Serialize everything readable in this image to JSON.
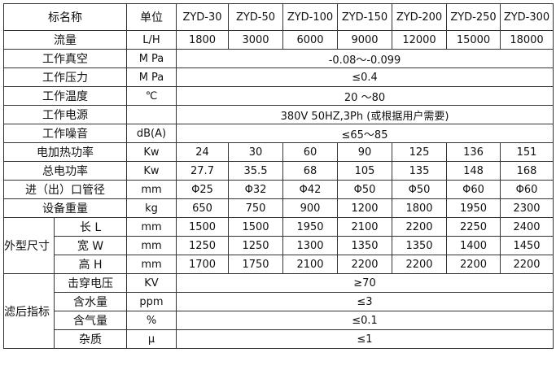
{
  "header": {
    "name": "标名称",
    "unit": "单位",
    "models": [
      "ZYD-30",
      "ZYD-50",
      "ZYD-100",
      "ZYD-150",
      "ZYD-200",
      "ZYD-250",
      "ZYD-300"
    ]
  },
  "rows": [
    {
      "name": "流量",
      "unit": "L/H",
      "values": [
        "1800",
        "3000",
        "6000",
        "9000",
        "12000",
        "15000",
        "18000"
      ]
    },
    {
      "name": "工作真空",
      "unit": "M Pa",
      "span": "-0.08～-0.099"
    },
    {
      "name": "工作压力",
      "unit": "M Pa",
      "span": "≤0.4"
    },
    {
      "name": "工作温度",
      "unit": "℃",
      "span": "20 ～80"
    },
    {
      "name": "工作电源",
      "unit": "",
      "span": "380V 50HZ,3Ph (或根据用户需要)"
    },
    {
      "name": "工作噪音",
      "unit": "dB(A)",
      "span": "≤65～85"
    },
    {
      "name": "电加热功率",
      "unit": "Kw",
      "values": [
        "24",
        "30",
        "60",
        "90",
        "125",
        "136",
        "151"
      ]
    },
    {
      "name": "总电功率",
      "unit": "Kw",
      "values": [
        "27.7",
        "35.5",
        "68",
        "105",
        "135",
        "148",
        "168"
      ]
    },
    {
      "name": "进（出）口管径",
      "unit": "mm",
      "values": [
        "Φ25",
        "Φ32",
        "Φ42",
        "Φ50",
        "Φ50",
        "Φ60",
        "Φ60"
      ]
    },
    {
      "name": "设备重量",
      "unit": "kg",
      "values": [
        "650",
        "750",
        "900",
        "1200",
        "1800",
        "1950",
        "2300"
      ]
    }
  ],
  "dimensions": {
    "group": "外型尺寸",
    "rows": [
      {
        "name": "长 L",
        "unit": "mm",
        "values": [
          "1500",
          "1500",
          "1950",
          "2100",
          "2200",
          "2250",
          "2400"
        ]
      },
      {
        "name": "宽 W",
        "unit": "mm",
        "values": [
          "1250",
          "1250",
          "1300",
          "1350",
          "1350",
          "1400",
          "1450"
        ]
      },
      {
        "name": "高 H",
        "unit": "mm",
        "values": [
          "1700",
          "1750",
          "2100",
          "2200",
          "2200",
          "2200",
          "2200"
        ]
      }
    ]
  },
  "filtered": {
    "group": "滤后指标",
    "rows": [
      {
        "name": "击穿电压",
        "unit": "KV",
        "span": "≥70"
      },
      {
        "name": "含水量",
        "unit": "ppm",
        "span": "≤3"
      },
      {
        "name": "含气量",
        "unit": "%",
        "span": "≤0.1"
      },
      {
        "name": "杂质",
        "unit": "μ",
        "span": "≤1"
      }
    ]
  }
}
